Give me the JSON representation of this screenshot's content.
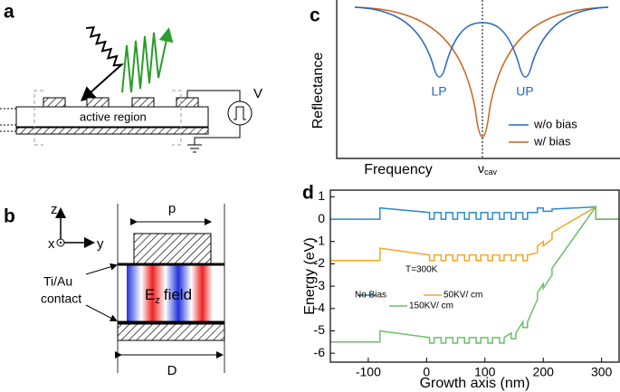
{
  "panels": {
    "a": {
      "label": "a",
      "region": "active region",
      "meter": "V"
    },
    "b": {
      "label": "b",
      "z": "z",
      "x": "x",
      "y": "y",
      "p": "p",
      "contact": [
        "Ti/Au",
        "contact"
      ],
      "field_symbol": "E",
      "field_subscript": "z",
      "field_word": "field",
      "width": "D"
    },
    "c": {
      "label": "c",
      "ylabel": "Reflectance",
      "xlabel": "Frequency",
      "lp": "LP",
      "up": "UP",
      "nu": "ν",
      "nu_subscript": "cav",
      "legend": [
        "w/o bias",
        "w/ bias"
      ]
    },
    "d": {
      "label": "d"
    }
  },
  "chart_data": {
    "type": "line",
    "xlabel": "Growth axis (nm)",
    "ylabel": "Energy (eV)",
    "annotation": "T=300K",
    "xlim": [
      -165,
      330
    ],
    "ylim": [
      -6.4,
      1.3
    ],
    "xticks": [
      -100,
      0,
      100,
      200,
      300
    ],
    "yticks": [
      1,
      0,
      -1,
      -2,
      -3,
      -4,
      -5,
      -6
    ],
    "x": [
      -165,
      -80,
      -80,
      5,
      5,
      13,
      13,
      25,
      25,
      33,
      33,
      45,
      45,
      53,
      53,
      65,
      65,
      73,
      73,
      85,
      85,
      93,
      93,
      105,
      105,
      113,
      113,
      125,
      125,
      133,
      133,
      145,
      145,
      153,
      153,
      165,
      165,
      173,
      173,
      190,
      190,
      200,
      200,
      215,
      215,
      290,
      290,
      330
    ],
    "series": [
      {
        "name": "No Bias",
        "color": "#2b8cc4",
        "values": [
          0,
          0,
          0.5,
          0.3,
          0,
          0,
          0.3,
          0.3,
          0,
          0,
          0.3,
          0.3,
          0,
          0,
          0.3,
          0.3,
          0,
          0,
          0.3,
          0.3,
          0,
          0,
          0.3,
          0.3,
          0,
          0,
          0.3,
          0.3,
          0,
          0,
          0.3,
          0.3,
          0,
          0,
          0.3,
          0.3,
          0,
          0,
          0.3,
          0.3,
          0.5,
          0.5,
          0.35,
          0.35,
          0.45,
          0.55,
          0,
          0
        ]
      },
      {
        "name": "50KV/ cm",
        "color": "#f5a623",
        "values": [
          -1.85,
          -1.85,
          -1.3,
          -1.6,
          -1.85,
          -1.85,
          -1.6,
          -1.6,
          -1.85,
          -1.85,
          -1.6,
          -1.6,
          -1.85,
          -1.85,
          -1.6,
          -1.6,
          -1.85,
          -1.85,
          -1.6,
          -1.6,
          -1.85,
          -1.85,
          -1.6,
          -1.6,
          -1.85,
          -1.85,
          -1.6,
          -1.6,
          -1.85,
          -1.85,
          -1.6,
          -1.6,
          -1.85,
          -1.85,
          -1.6,
          -1.6,
          -1.85,
          -1.85,
          -1.6,
          -1.5,
          -1.2,
          -1.0,
          -1.2,
          -0.9,
          -0.6,
          0.55,
          0,
          0
        ]
      },
      {
        "name": "150KV/ cm",
        "color": "#6abf69",
        "values": [
          -5.5,
          -5.5,
          -5.0,
          -5.3,
          -5.55,
          -5.55,
          -5.3,
          -5.3,
          -5.55,
          -5.55,
          -5.3,
          -5.3,
          -5.55,
          -5.55,
          -5.3,
          -5.3,
          -5.55,
          -5.55,
          -5.3,
          -5.3,
          -5.55,
          -5.55,
          -5.3,
          -5.3,
          -5.55,
          -5.55,
          -5.3,
          -5.3,
          -5.55,
          -5.55,
          -5.3,
          -5.1,
          -5.35,
          -5.35,
          -5.1,
          -4.6,
          -4.85,
          -4.85,
          -4.6,
          -3.6,
          -3.3,
          -2.9,
          -3.1,
          -2.5,
          -2.2,
          0.55,
          0,
          0
        ]
      }
    ]
  }
}
